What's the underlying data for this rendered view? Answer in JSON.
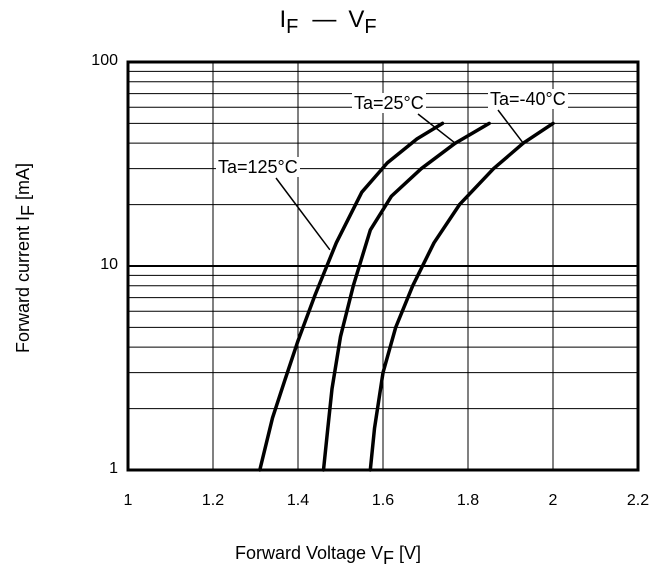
{
  "title": {
    "main": "I",
    "sub": "F",
    "dash": "—",
    "main2": "V",
    "sub2": "F"
  },
  "chart_data": {
    "type": "line",
    "title": "IF — VF",
    "xlabel": "Forward Voltage VF [V]",
    "ylabel": "Forward current IF [mA]",
    "xlabel_parts": {
      "pre": "Forward Voltage V",
      "sub": "F",
      "post": " [V]"
    },
    "ylabel_parts": {
      "pre": "Forward current   I",
      "sub": "F",
      "post": " [mA]"
    },
    "xlim": [
      1,
      2.2
    ],
    "ylim": [
      1,
      100
    ],
    "yscale": "log",
    "xticks": [
      "1",
      "1.2",
      "1.4",
      "1.6",
      "1.8",
      "2",
      "2.2"
    ],
    "yticks": [
      "1",
      "10",
      "100"
    ],
    "grid": true,
    "series": [
      {
        "name": "Ta=125°C",
        "x": [
          1.31,
          1.34,
          1.37,
          1.4,
          1.44,
          1.49,
          1.55,
          1.61,
          1.68,
          1.74
        ],
        "y": [
          1,
          1.8,
          2.8,
          4.3,
          7.2,
          13,
          23,
          32,
          42,
          50
        ]
      },
      {
        "name": "Ta=25°C",
        "x": [
          1.46,
          1.47,
          1.48,
          1.5,
          1.53,
          1.57,
          1.62,
          1.69,
          1.77,
          1.85
        ],
        "y": [
          1,
          1.6,
          2.5,
          4.5,
          8,
          15,
          22,
          30,
          40,
          50
        ]
      },
      {
        "name": "Ta=-40°C",
        "x": [
          1.57,
          1.58,
          1.6,
          1.63,
          1.67,
          1.72,
          1.78,
          1.86,
          1.93,
          2.0
        ],
        "y": [
          1,
          1.6,
          3,
          5,
          8,
          13,
          20,
          30,
          40,
          50
        ]
      }
    ]
  }
}
